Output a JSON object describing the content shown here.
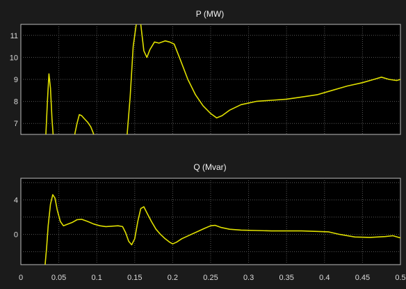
{
  "chart_data": [
    {
      "type": "line",
      "title": "P (MW)",
      "xlim": [
        0,
        0.5
      ],
      "ylim": [
        6.5,
        11.5
      ],
      "x_ticks": [
        0,
        0.05,
        0.1,
        0.15,
        0.2,
        0.25,
        0.3,
        0.35,
        0.4,
        0.45,
        0.5
      ],
      "y_ticks": [
        7,
        8,
        9,
        10,
        11
      ],
      "y_tick_labels": [
        "7",
        "8",
        "9",
        "10",
        "11"
      ],
      "grid": true,
      "line_color": "#e0e000",
      "background_color": "#000000",
      "series": [
        {
          "segments": [
            [
              [
                0.033,
                6.5
              ],
              [
                0.035,
                8.0
              ],
              [
                0.037,
                9.25
              ],
              [
                0.039,
                8.6
              ],
              [
                0.041,
                7.2
              ],
              [
                0.0425,
                6.5
              ]
            ],
            [
              [
                0.071,
                6.5
              ],
              [
                0.074,
                7.0
              ],
              [
                0.077,
                7.4
              ],
              [
                0.08,
                7.35
              ],
              [
                0.084,
                7.2
              ],
              [
                0.088,
                7.05
              ],
              [
                0.092,
                6.85
              ],
              [
                0.095,
                6.6
              ],
              [
                0.096,
                6.5
              ]
            ],
            [
              [
                0.14,
                6.5
              ],
              [
                0.144,
                8.2
              ],
              [
                0.148,
                10.5
              ],
              [
                0.152,
                11.5
              ]
            ],
            [
              [
                0.158,
                11.5
              ],
              [
                0.162,
                10.3
              ],
              [
                0.166,
                10.0
              ],
              [
                0.17,
                10.35
              ],
              [
                0.176,
                10.7
              ],
              [
                0.182,
                10.65
              ],
              [
                0.19,
                10.75
              ],
              [
                0.196,
                10.7
              ],
              [
                0.202,
                10.6
              ],
              [
                0.21,
                9.9
              ],
              [
                0.22,
                9.0
              ],
              [
                0.23,
                8.3
              ],
              [
                0.24,
                7.8
              ],
              [
                0.25,
                7.45
              ],
              [
                0.258,
                7.25
              ],
              [
                0.265,
                7.35
              ],
              [
                0.275,
                7.6
              ],
              [
                0.29,
                7.85
              ],
              [
                0.31,
                8.0
              ],
              [
                0.33,
                8.05
              ],
              [
                0.35,
                8.1
              ],
              [
                0.37,
                8.2
              ],
              [
                0.39,
                8.3
              ],
              [
                0.41,
                8.5
              ],
              [
                0.43,
                8.7
              ],
              [
                0.45,
                8.85
              ],
              [
                0.465,
                9.0
              ],
              [
                0.475,
                9.1
              ],
              [
                0.485,
                9.0
              ],
              [
                0.495,
                8.95
              ],
              [
                0.5,
                9.0
              ]
            ]
          ]
        }
      ]
    },
    {
      "type": "line",
      "title": "Q (Mvar)",
      "xlim": [
        0,
        0.5
      ],
      "ylim": [
        -3.5,
        6.5
      ],
      "x_ticks": [
        0,
        0.05,
        0.1,
        0.15,
        0.2,
        0.25,
        0.3,
        0.35,
        0.4,
        0.45,
        0.5
      ],
      "x_tick_labels": [
        "0",
        "0.05",
        "0.1",
        "0.15",
        "0.2",
        "0.25",
        "0.3",
        "0.35",
        "0.4",
        "0.45",
        "0.5"
      ],
      "y_ticks": [
        -2,
        0,
        2,
        4,
        6
      ],
      "y_tick_labels": [
        "0",
        "4"
      ],
      "y_tick_label_values": [
        0,
        4
      ],
      "grid": true,
      "line_color": "#e0e000",
      "background_color": "#000000",
      "series": [
        {
          "segments": [
            [
              [
                0.032,
                -3.5
              ],
              [
                0.034,
                -1.5
              ],
              [
                0.036,
                1.0
              ],
              [
                0.039,
                3.5
              ],
              [
                0.042,
                4.6
              ],
              [
                0.045,
                4.2
              ],
              [
                0.048,
                2.8
              ],
              [
                0.052,
                1.5
              ],
              [
                0.056,
                1.0
              ],
              [
                0.062,
                1.2
              ],
              [
                0.068,
                1.4
              ],
              [
                0.074,
                1.7
              ],
              [
                0.08,
                1.75
              ],
              [
                0.088,
                1.5
              ],
              [
                0.096,
                1.2
              ],
              [
                0.104,
                1.0
              ],
              [
                0.112,
                0.9
              ],
              [
                0.12,
                0.95
              ],
              [
                0.128,
                1.0
              ],
              [
                0.134,
                0.9
              ],
              [
                0.138,
                0.2
              ],
              [
                0.142,
                -0.8
              ],
              [
                0.146,
                -1.2
              ],
              [
                0.15,
                -0.5
              ],
              [
                0.154,
                1.5
              ],
              [
                0.158,
                3.0
              ],
              [
                0.162,
                3.2
              ],
              [
                0.166,
                2.5
              ],
              [
                0.172,
                1.5
              ],
              [
                0.178,
                0.6
              ],
              [
                0.184,
                0.0
              ],
              [
                0.19,
                -0.5
              ],
              [
                0.196,
                -0.9
              ],
              [
                0.2,
                -1.1
              ],
              [
                0.205,
                -0.9
              ],
              [
                0.212,
                -0.5
              ],
              [
                0.222,
                -0.1
              ],
              [
                0.232,
                0.3
              ],
              [
                0.242,
                0.7
              ],
              [
                0.25,
                1.0
              ],
              [
                0.256,
                1.05
              ],
              [
                0.264,
                0.8
              ],
              [
                0.275,
                0.6
              ],
              [
                0.29,
                0.5
              ],
              [
                0.31,
                0.45
              ],
              [
                0.33,
                0.4
              ],
              [
                0.35,
                0.4
              ],
              [
                0.37,
                0.4
              ],
              [
                0.39,
                0.35
              ],
              [
                0.405,
                0.3
              ],
              [
                0.42,
                0.0
              ],
              [
                0.44,
                -0.3
              ],
              [
                0.46,
                -0.35
              ],
              [
                0.48,
                -0.25
              ],
              [
                0.49,
                -0.15
              ],
              [
                0.5,
                -0.4
              ]
            ]
          ]
        }
      ]
    }
  ]
}
